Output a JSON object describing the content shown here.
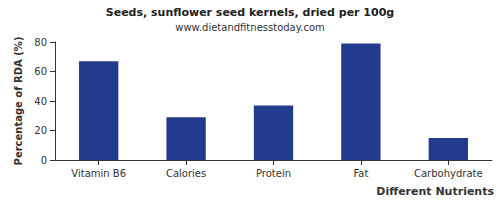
{
  "chart_data": {
    "type": "bar",
    "title": "Seeds, sunflower seed kernels, dried per 100g",
    "subtitle": "www.dietandfitnesstoday.com",
    "x_label": "Different Nutrients",
    "y_label": "Percentage of RDA (%)",
    "categories": [
      "Vitamin B6",
      "Calories",
      "Protein",
      "Fat",
      "Carbohydrate"
    ],
    "values": [
      67,
      29,
      37,
      79,
      15
    ],
    "color": "#233b8c",
    "ylim": [
      0,
      80
    ],
    "yticks": [
      0,
      20,
      40,
      60,
      80
    ],
    "grid": false
  }
}
